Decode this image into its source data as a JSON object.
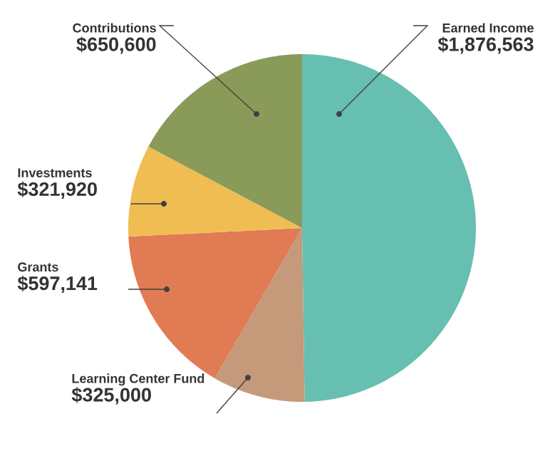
{
  "chart_data": {
    "type": "pie",
    "categories": [
      "Earned Income",
      "Learning Center Fund",
      "Grants",
      "Investments",
      "Contributions"
    ],
    "values": [
      1876563,
      325000,
      597141,
      321920,
      650600
    ],
    "value_labels": [
      "$1,876,563",
      "$325,000",
      "$597,141",
      "$321,920",
      "$650,600"
    ],
    "colors": [
      "#66bfb0",
      "#c49a7a",
      "#e07b54",
      "#f0bd53",
      "#8a9a58"
    ]
  }
}
